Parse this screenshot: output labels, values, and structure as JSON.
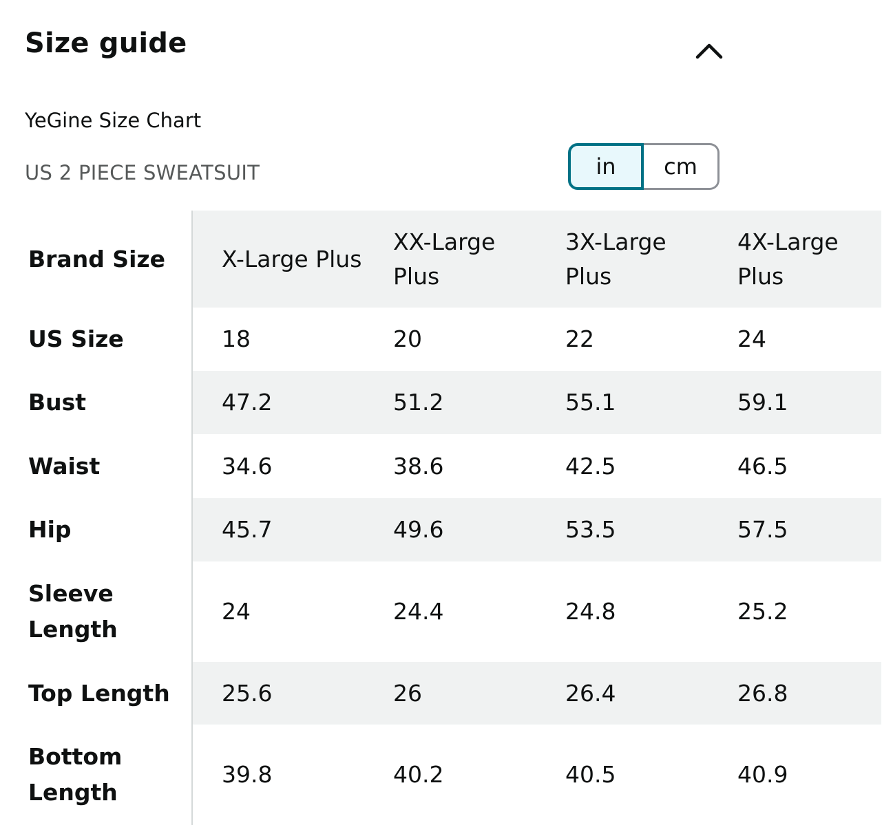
{
  "header": {
    "title": "Size guide",
    "collapse_icon": "chevron-up-icon"
  },
  "chart": {
    "title": "YeGine Size Chart",
    "subtitle": "US 2 PIECE SWEATSUIT"
  },
  "units": {
    "in_label": "in",
    "cm_label": "cm",
    "selected": "in"
  },
  "colors": {
    "accent": "#007185",
    "toggle_active_bg": "#e8f8fc",
    "row_shade": "#f0f2f2",
    "subtitle": "#565959"
  },
  "table": {
    "rows": [
      {
        "label": "Brand Size",
        "values": [
          "X-Large Plus",
          "XX-Large Plus",
          "3X-Large Plus",
          "4X-Large Plus"
        ]
      },
      {
        "label": "US Size",
        "values": [
          "18",
          "20",
          "22",
          "24"
        ]
      },
      {
        "label": "Bust",
        "values": [
          "47.2",
          "51.2",
          "55.1",
          "59.1"
        ]
      },
      {
        "label": "Waist",
        "values": [
          "34.6",
          "38.6",
          "42.5",
          "46.5"
        ]
      },
      {
        "label": "Hip",
        "values": [
          "45.7",
          "49.6",
          "53.5",
          "57.5"
        ]
      },
      {
        "label": "Sleeve Length",
        "values": [
          "24",
          "24.4",
          "24.8",
          "25.2"
        ]
      },
      {
        "label": "Top Length",
        "values": [
          "25.6",
          "26",
          "26.4",
          "26.8"
        ]
      },
      {
        "label": "Bottom Length",
        "values": [
          "39.8",
          "40.2",
          "40.5",
          "40.9"
        ]
      }
    ]
  }
}
